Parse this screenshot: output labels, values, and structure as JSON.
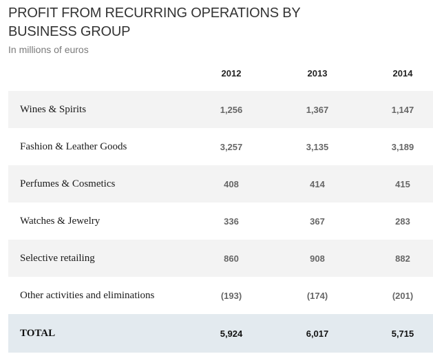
{
  "header": {
    "title": "PROFIT FROM RECURRING OPERATIONS BY BUSINESS GROUP",
    "subtitle": "In millions of euros"
  },
  "table": {
    "columns": [
      "2012",
      "2013",
      "2014"
    ],
    "rows": [
      {
        "label": "Wines & Spirits",
        "values": [
          "1,256",
          "1,367",
          "1,147"
        ]
      },
      {
        "label": "Fashion & Leather Goods",
        "values": [
          "3,257",
          "3,135",
          "3,189"
        ]
      },
      {
        "label": "Perfumes & Cosmetics",
        "values": [
          "408",
          "414",
          "415"
        ]
      },
      {
        "label": "Watches & Jewelry",
        "values": [
          "336",
          "367",
          "283"
        ]
      },
      {
        "label": "Selective retailing",
        "values": [
          "860",
          "908",
          "882"
        ]
      },
      {
        "label": "Other activities and eliminations",
        "values": [
          "(193)",
          "(174)",
          "(201)"
        ]
      }
    ],
    "total": {
      "label": "TOTAL",
      "values": [
        "5,924",
        "6,017",
        "5,715"
      ]
    }
  },
  "colors": {
    "row_shade": "#f3f3f3",
    "total_shade": "#e3eaef",
    "title_text": "#333333"
  }
}
